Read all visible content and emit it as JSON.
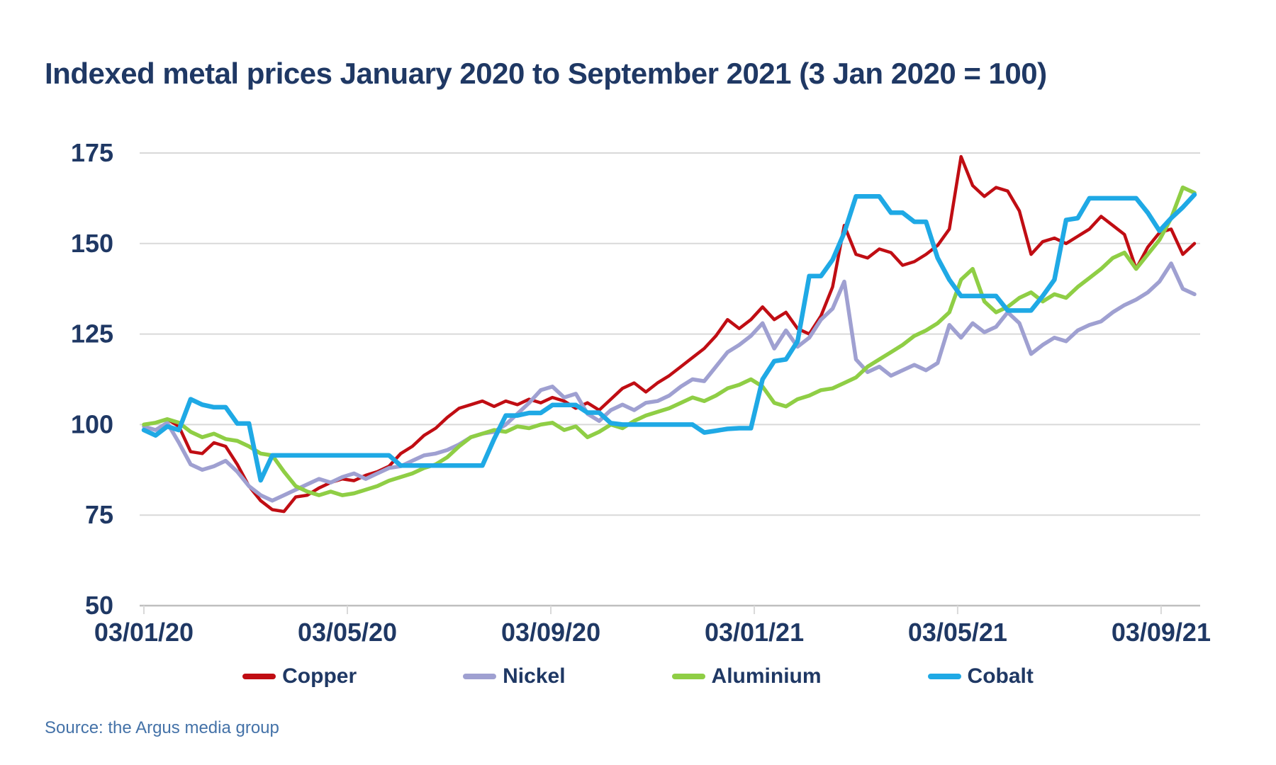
{
  "page": {
    "title": "Indexed metal prices January 2020 to September 2021 (3 Jan 2020 = 100)",
    "source": "Source: the Argus media group"
  },
  "colors": {
    "title_navy": "#1f3864",
    "axis_label_navy": "#1f3864",
    "source_blue": "#4472a8",
    "gridline_gray": "#d9d9d9",
    "axis_line_gray": "#bfbfbf",
    "copper_red": "#c00d13",
    "nickel_purple": "#9fa0d1",
    "aluminium_green": "#8fce45",
    "cobalt_blue": "#1fa9e5"
  },
  "chart_data": {
    "type": "line",
    "title": "Indexed metal prices January 2020 to September 2021 (3 Jan 2020 = 100)",
    "xlabel": "",
    "ylabel": "",
    "x_unit": "weekly values, 03/01/20 through 24/09/21 (dd/mm/yy)",
    "index_base": "3 Jan 2020 = 100",
    "grid": "horizontal only",
    "legend_position": "bottom center",
    "ylim": [
      50,
      175
    ],
    "y_axis": {
      "ticks": [
        175,
        150,
        125,
        100,
        75,
        50
      ],
      "tick_interval": 25
    },
    "x_axis": {
      "tick_labels": [
        "03/01/20",
        "03/05/20",
        "03/09/20",
        "03/01/21",
        "03/05/21",
        "03/09/21"
      ],
      "tick_week_offsets": [
        0,
        17.43,
        34.86,
        52.29,
        69.71,
        87.14
      ],
      "total_weeks": 90
    },
    "series": [
      {
        "name": "Copper",
        "color": "#c00d13",
        "values": [
          100,
          100.5,
          101.5,
          99.5,
          92.5,
          92,
          95,
          94,
          89,
          83,
          79,
          76.5,
          76,
          80,
          80.5,
          82.5,
          84,
          85,
          84.5,
          86,
          87,
          88.5,
          92,
          94,
          97,
          99,
          102,
          104.5,
          105.5,
          106.5,
          105,
          106.5,
          105.5,
          107,
          106,
          107.5,
          106.5,
          104.5,
          106,
          104,
          107,
          110,
          111.5,
          109,
          111.5,
          113.5,
          116,
          118.5,
          121,
          124.5,
          129,
          126.5,
          129,
          132.5,
          129,
          131,
          126.5,
          125,
          130,
          138,
          155,
          147,
          146,
          148.5,
          147.5,
          144,
          145,
          147,
          149.5,
          154,
          174,
          166,
          163,
          165.5,
          164.5,
          159,
          147,
          150.5,
          151.5,
          150,
          152,
          154,
          157.5,
          155,
          152.5,
          143,
          149,
          153,
          154,
          147,
          150
        ]
      },
      {
        "name": "Nickel",
        "color": "#9fa0d1",
        "values": [
          99.5,
          98.5,
          100.5,
          95,
          89,
          87.5,
          88.5,
          90,
          87,
          83,
          80.5,
          79,
          80.5,
          82,
          83.5,
          85,
          84,
          85.5,
          86.5,
          85,
          86.5,
          88,
          88.5,
          90,
          91.5,
          92,
          93,
          94.5,
          96.5,
          97.5,
          98,
          100,
          103,
          106,
          109.5,
          110.5,
          107.5,
          108.5,
          103,
          101,
          104,
          105.5,
          104,
          106,
          106.5,
          108,
          110.5,
          112.5,
          112,
          116,
          120,
          122,
          124.5,
          128,
          121,
          126,
          121.5,
          124,
          129,
          132,
          139.5,
          118,
          114.5,
          116,
          113.5,
          115,
          116.5,
          115,
          117,
          127.5,
          124,
          128,
          125.5,
          127,
          131,
          128,
          119.5,
          122,
          124,
          123,
          126,
          127.5,
          128.5,
          131,
          133,
          134.5,
          136.5,
          139.5,
          144.5,
          137.5,
          136
        ]
      },
      {
        "name": "Aluminium",
        "color": "#8fce45",
        "values": [
          100,
          100.5,
          101.5,
          100.5,
          98,
          96.5,
          97.5,
          96,
          95.5,
          94,
          92,
          91.5,
          87,
          83,
          81.5,
          80.5,
          81.5,
          80.5,
          81,
          82,
          83,
          84.5,
          85.5,
          86.5,
          88,
          89,
          91,
          94,
          96.5,
          97.5,
          98.5,
          98,
          99.5,
          99,
          100,
          100.5,
          98.5,
          99.5,
          96.5,
          98,
          100,
          99,
          101,
          102.5,
          103.5,
          104.5,
          106,
          107.5,
          106.5,
          108,
          110,
          111,
          112.5,
          110.5,
          106,
          105,
          107,
          108,
          109.5,
          110,
          111.5,
          113,
          116,
          118,
          120,
          122,
          124.5,
          126,
          128,
          131,
          140,
          143,
          134,
          131,
          132.5,
          135,
          136.5,
          134,
          136,
          135,
          138,
          140.5,
          143,
          146,
          147.5,
          143,
          147,
          151,
          157,
          165.5,
          164
        ]
      },
      {
        "name": "Cobalt",
        "color": "#1fa9e5",
        "values": [
          98.5,
          97,
          99.5,
          98.5,
          107,
          105.5,
          104.8,
          104.8,
          100.3,
          100.3,
          84.6,
          91.5,
          91.5,
          91.5,
          91.5,
          91.5,
          91.5,
          91.5,
          91.5,
          91.5,
          91.5,
          91.5,
          88.7,
          88.7,
          88.7,
          88.7,
          88.7,
          88.7,
          88.7,
          88.7,
          96,
          102.5,
          102.5,
          103.2,
          103.2,
          105.4,
          105.4,
          105.4,
          103.3,
          103.3,
          100.4,
          100,
          100,
          100,
          100,
          100,
          100,
          100,
          97.8,
          98.3,
          98.8,
          99,
          99,
          112.5,
          117.5,
          118,
          123,
          141,
          141,
          145.5,
          153,
          163,
          163,
          163,
          158.5,
          158.5,
          156,
          156,
          146,
          140,
          135.5,
          135.5,
          135.5,
          135.5,
          131.5,
          131.5,
          131.5,
          135.5,
          140,
          156.5,
          157,
          162.5,
          162.5,
          162.5,
          162.5,
          162.5,
          158.5,
          153.5,
          157,
          160,
          163.5
        ]
      }
    ]
  }
}
